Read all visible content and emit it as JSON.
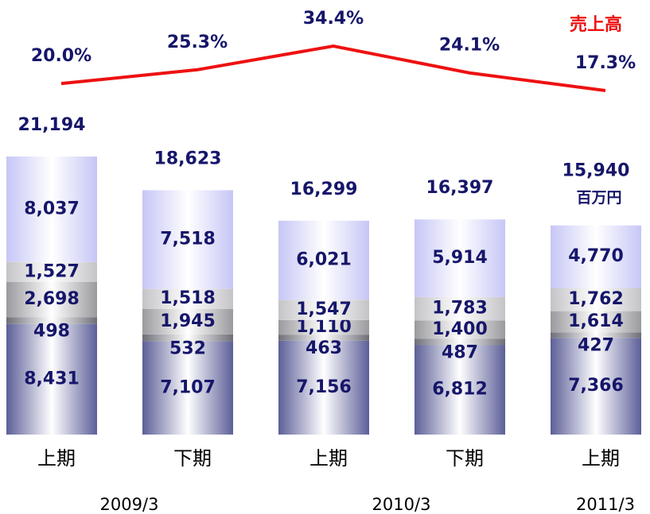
{
  "chart_data": {
    "type": "bar",
    "categories": [
      "上期",
      "下期",
      "上期",
      "下期",
      "上期"
    ],
    "group_labels": [
      "2009/3",
      "2010/3",
      "2011/3"
    ],
    "stacked": true,
    "series": [
      {
        "color": "#5c5f98",
        "values": [
          8431,
          7107,
          7156,
          6812,
          7366
        ],
        "value_labels": [
          "8,431",
          "7,107",
          "7,156",
          "6,812",
          "7,366"
        ]
      },
      {
        "color": "#6e6e78",
        "values": [
          498,
          532,
          463,
          487,
          427
        ]
      },
      {
        "color": "#9a9a9e",
        "values": [
          2698,
          1945,
          1110,
          1400,
          1614
        ],
        "value_labels": [
          "2,698",
          "1,945",
          "1,110",
          "1,400",
          "1,614"
        ]
      },
      {
        "color": "#c4c4c8",
        "values": [
          1527,
          1518,
          1547,
          1783,
          1762
        ],
        "value_labels": [
          "1,527",
          "1,518",
          "1,547",
          "1,783",
          "1,762"
        ]
      },
      {
        "color": "#c6c6f6",
        "values": [
          8037,
          7518,
          6021,
          5914,
          4770
        ],
        "value_labels": [
          "8,037",
          "7,518",
          "6,021",
          "5,914",
          "4,770"
        ]
      }
    ],
    "totals": [
      21194,
      18623,
      16299,
      16397,
      15940
    ],
    "total_labels": [
      "21,194",
      "18,623",
      "16,299",
      "16,397",
      "15,940"
    ],
    "unit": "百万円",
    "line": {
      "name": "売上高",
      "color": "#ee1111",
      "values": [
        20.0,
        25.3,
        34.4,
        24.1,
        17.3
      ],
      "value_labels": [
        "20.0%",
        "25.3%",
        "34.4%",
        "24.1%",
        "17.3%"
      ]
    }
  }
}
